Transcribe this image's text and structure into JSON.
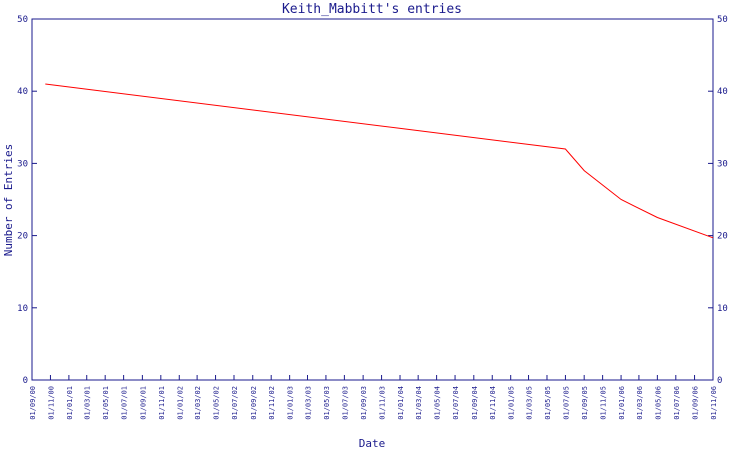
{
  "chart_data": {
    "type": "line",
    "title": "Keith_Mabbitt's entries",
    "xlabel": "Date",
    "ylabel": "Number of Entries",
    "ylim": [
      0,
      50
    ],
    "y_ticks": [
      0,
      10,
      20,
      30,
      40,
      50
    ],
    "grid": false,
    "x_tick_labels": [
      "01/09/00",
      "01/11/00",
      "01/01/01",
      "01/03/01",
      "01/05/01",
      "01/07/01",
      "01/09/01",
      "01/11/01",
      "01/01/02",
      "01/03/02",
      "01/05/02",
      "01/07/02",
      "01/09/02",
      "01/11/02",
      "01/01/03",
      "01/03/03",
      "01/05/03",
      "01/07/03",
      "01/09/03",
      "01/11/03",
      "01/01/04",
      "01/03/04",
      "01/05/04",
      "01/07/04",
      "01/09/04",
      "01/11/04",
      "01/01/05",
      "01/03/05",
      "01/05/05",
      "01/07/05",
      "01/09/05",
      "01/11/05",
      "01/01/06",
      "01/03/06",
      "01/05/06",
      "01/07/06",
      "01/09/06",
      "01/11/06"
    ],
    "series": [
      {
        "color": "#ff0000",
        "points": [
          {
            "x": "2000-10-15",
            "y": 41
          },
          {
            "x": "2005-07-01",
            "y": 32
          },
          {
            "x": "2005-09-01",
            "y": 29
          },
          {
            "x": "2006-01-01",
            "y": 25
          },
          {
            "x": "2006-05-01",
            "y": 22.5
          },
          {
            "x": "2006-11-01",
            "y": 19.7
          }
        ]
      }
    ],
    "colors": {
      "axis": "#1a1a8c",
      "text": "#1a1a8c"
    }
  }
}
